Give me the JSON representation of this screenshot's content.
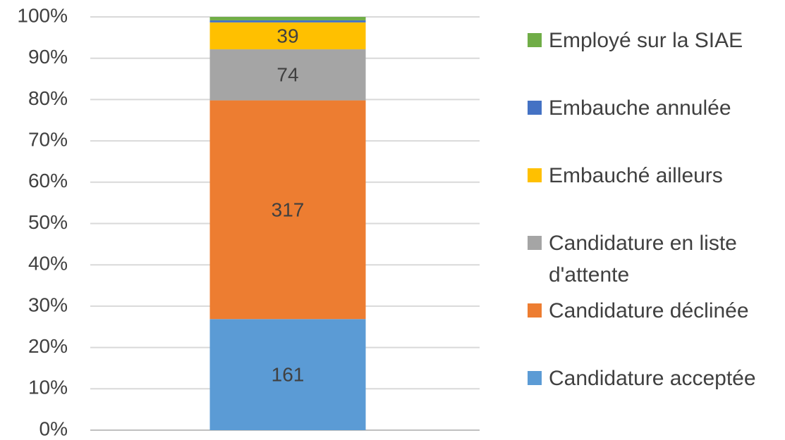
{
  "chart_data": {
    "type": "bar",
    "stacking": "percent",
    "categories": [
      null
    ],
    "series": [
      {
        "name": "Candidature acceptée",
        "color": "#5b9bd5",
        "values": [
          161
        ],
        "data_label": true
      },
      {
        "name": "Candidature déclinée",
        "color": "#ed7d31",
        "values": [
          317
        ],
        "data_label": true
      },
      {
        "name": "Candidature en liste d'attente",
        "color": "#a5a5a5",
        "values": [
          74
        ],
        "data_label": true
      },
      {
        "name": "Embauché ailleurs",
        "color": "#ffc000",
        "values": [
          39
        ],
        "data_label": true
      },
      {
        "name": "Embauche annulée",
        "color": "#4472c4",
        "values": [
          3
        ],
        "data_label": false
      },
      {
        "name": "Employé sur la SIAE",
        "color": "#70ad47",
        "values": [
          5
        ],
        "data_label": false
      }
    ],
    "ylim": [
      0,
      100
    ],
    "yticks": [
      {
        "value": 0,
        "label": "0%"
      },
      {
        "value": 10,
        "label": "10%"
      },
      {
        "value": 20,
        "label": "20%"
      },
      {
        "value": 30,
        "label": "30%"
      },
      {
        "value": 40,
        "label": "40%"
      },
      {
        "value": 50,
        "label": "50%"
      },
      {
        "value": 60,
        "label": "60%"
      },
      {
        "value": 70,
        "label": "70%"
      },
      {
        "value": 80,
        "label": "80%"
      },
      {
        "value": 90,
        "label": "90%"
      },
      {
        "value": 100,
        "label": "100%"
      }
    ],
    "grid": true,
    "legend": "right"
  }
}
